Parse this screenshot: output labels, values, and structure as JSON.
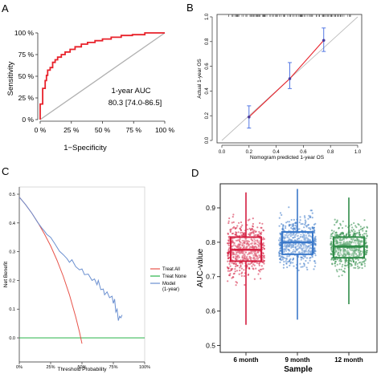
{
  "chart_data": [
    {
      "panel": "A",
      "type": "line",
      "xlabel": "1−Specificity",
      "ylabel": "Sensitivity",
      "xlim": [
        0,
        100
      ],
      "ylim": [
        0,
        100
      ],
      "xticks": [
        "0 %",
        "25 %",
        "50 %",
        "75 %",
        "100 %"
      ],
      "yticks": [
        "0 %",
        "25 %",
        "50 %",
        "75 %",
        "100 %"
      ],
      "annotations": [
        "1-year AUC",
        "80.3 [74.0-86.5]"
      ],
      "series": [
        {
          "role": "roc",
          "color": "#e8212a",
          "x": [
            0,
            0,
            2,
            2,
            4,
            4,
            5,
            5,
            6,
            6,
            8,
            8,
            10,
            10,
            12,
            12,
            14,
            14,
            17,
            17,
            20,
            20,
            24,
            24,
            28,
            28,
            33,
            33,
            38,
            38,
            44,
            44,
            50,
            50,
            57,
            57,
            65,
            65,
            74,
            74,
            84,
            84,
            100
          ],
          "y": [
            0,
            18,
            18,
            36,
            36,
            45,
            45,
            51,
            51,
            57,
            57,
            60,
            60,
            66,
            66,
            69,
            69,
            72,
            72,
            75,
            75,
            78,
            78,
            81,
            81,
            84,
            84,
            87,
            87,
            89,
            89,
            91,
            91,
            93,
            93,
            95,
            95,
            97,
            97,
            98,
            98,
            100,
            100
          ]
        },
        {
          "role": "reference",
          "color": "#b0b0b0",
          "x": [
            0,
            100
          ],
          "y": [
            0,
            100
          ]
        }
      ]
    },
    {
      "panel": "B",
      "type": "scatter",
      "xlabel": "Nomogram predicted 1-year OS",
      "ylabel": "Actual 1-year OS",
      "xlim": [
        0,
        1
      ],
      "ylim": [
        0,
        1
      ],
      "xticks": [
        "0.0",
        "0.2",
        "0.4",
        "0.6",
        "0.8",
        "1.0"
      ],
      "yticks": [
        "0.0",
        "0.2",
        "0.4",
        "0.6",
        "0.8",
        "1.0"
      ],
      "points": [
        {
          "x": 0.2,
          "y": 0.19,
          "lo": 0.1,
          "hi": 0.28
        },
        {
          "x": 0.5,
          "y": 0.5,
          "lo": 0.42,
          "hi": 0.63
        },
        {
          "x": 0.75,
          "y": 0.81,
          "lo": 0.72,
          "hi": 0.91
        }
      ],
      "colors": {
        "point": "#4b3a9b",
        "errorbar": "#4169e1",
        "line": "#e8212a",
        "diagonal": "#bdbdbd",
        "rug": "#555555"
      }
    },
    {
      "panel": "C",
      "type": "line",
      "xlabel": "Threshold Probability",
      "ylabel": "Net Benefit",
      "xlim": [
        0,
        100
      ],
      "ylim": [
        -0.05,
        0.5
      ],
      "xticks": [
        "0%",
        "25%",
        "50%",
        "75%",
        "100%"
      ],
      "yticks": [
        "0.0",
        "0.1",
        "0.2",
        "0.3",
        "0.4",
        "0.5"
      ],
      "legend_position": "right",
      "series": [
        {
          "name": "Treat All",
          "color": "#e8534a",
          "x": [
            0,
            5,
            10,
            15,
            20,
            25,
            30,
            35,
            40,
            45,
            48,
            50
          ],
          "y": [
            0.49,
            0.464,
            0.434,
            0.4,
            0.362,
            0.32,
            0.271,
            0.215,
            0.15,
            0.073,
            0.02,
            -0.02
          ]
        },
        {
          "name": "Treat None",
          "color": "#2ab34a",
          "x": [
            0,
            100
          ],
          "y": [
            0,
            0
          ]
        },
        {
          "name": "Model\n(1-year)",
          "color": "#6a8fd0",
          "x": [
            0,
            5,
            10,
            15,
            18,
            20,
            22,
            25,
            28,
            30,
            32,
            35,
            38,
            40,
            42,
            45,
            48,
            50,
            52,
            55,
            58,
            60,
            62,
            63,
            65,
            67,
            68,
            70,
            72,
            74,
            75,
            76,
            77,
            78,
            79,
            80,
            81,
            82
          ],
          "y": [
            0.49,
            0.464,
            0.434,
            0.4,
            0.382,
            0.372,
            0.36,
            0.35,
            0.33,
            0.316,
            0.302,
            0.29,
            0.276,
            0.263,
            0.272,
            0.248,
            0.237,
            0.24,
            0.22,
            0.222,
            0.2,
            0.205,
            0.185,
            0.2,
            0.168,
            0.17,
            0.15,
            0.16,
            0.14,
            0.145,
            0.12,
            0.135,
            0.09,
            0.1,
            0.06,
            0.075,
            0.07,
            0.08
          ]
        }
      ]
    },
    {
      "panel": "D",
      "type": "box",
      "xlabel": "Sample",
      "ylabel": "AUC-value",
      "ylim": [
        0.48,
        0.97
      ],
      "yticks": [
        "0.5",
        "0.6",
        "0.7",
        "0.8",
        "0.9"
      ],
      "categories": [
        "6 month",
        "9 month",
        "12 month"
      ],
      "boxes": [
        {
          "color": "#d41d3f",
          "min": 0.56,
          "q1": 0.745,
          "median": 0.778,
          "q3": 0.815,
          "max": 0.945,
          "mean": 0.78,
          "jitter_n": 600
        },
        {
          "color": "#3a78c9",
          "min": 0.575,
          "q1": 0.765,
          "median": 0.8,
          "q3": 0.83,
          "max": 0.955,
          "mean": 0.798,
          "jitter_n": 600
        },
        {
          "color": "#2f8c48",
          "min": 0.62,
          "q1": 0.755,
          "median": 0.788,
          "q3": 0.815,
          "max": 0.93,
          "mean": 0.785,
          "jitter_n": 600
        }
      ]
    }
  ],
  "panels": {
    "a": {
      "letter": "A"
    },
    "b": {
      "letter": "B"
    },
    "c": {
      "letter": "C"
    },
    "d": {
      "letter": "D"
    }
  }
}
